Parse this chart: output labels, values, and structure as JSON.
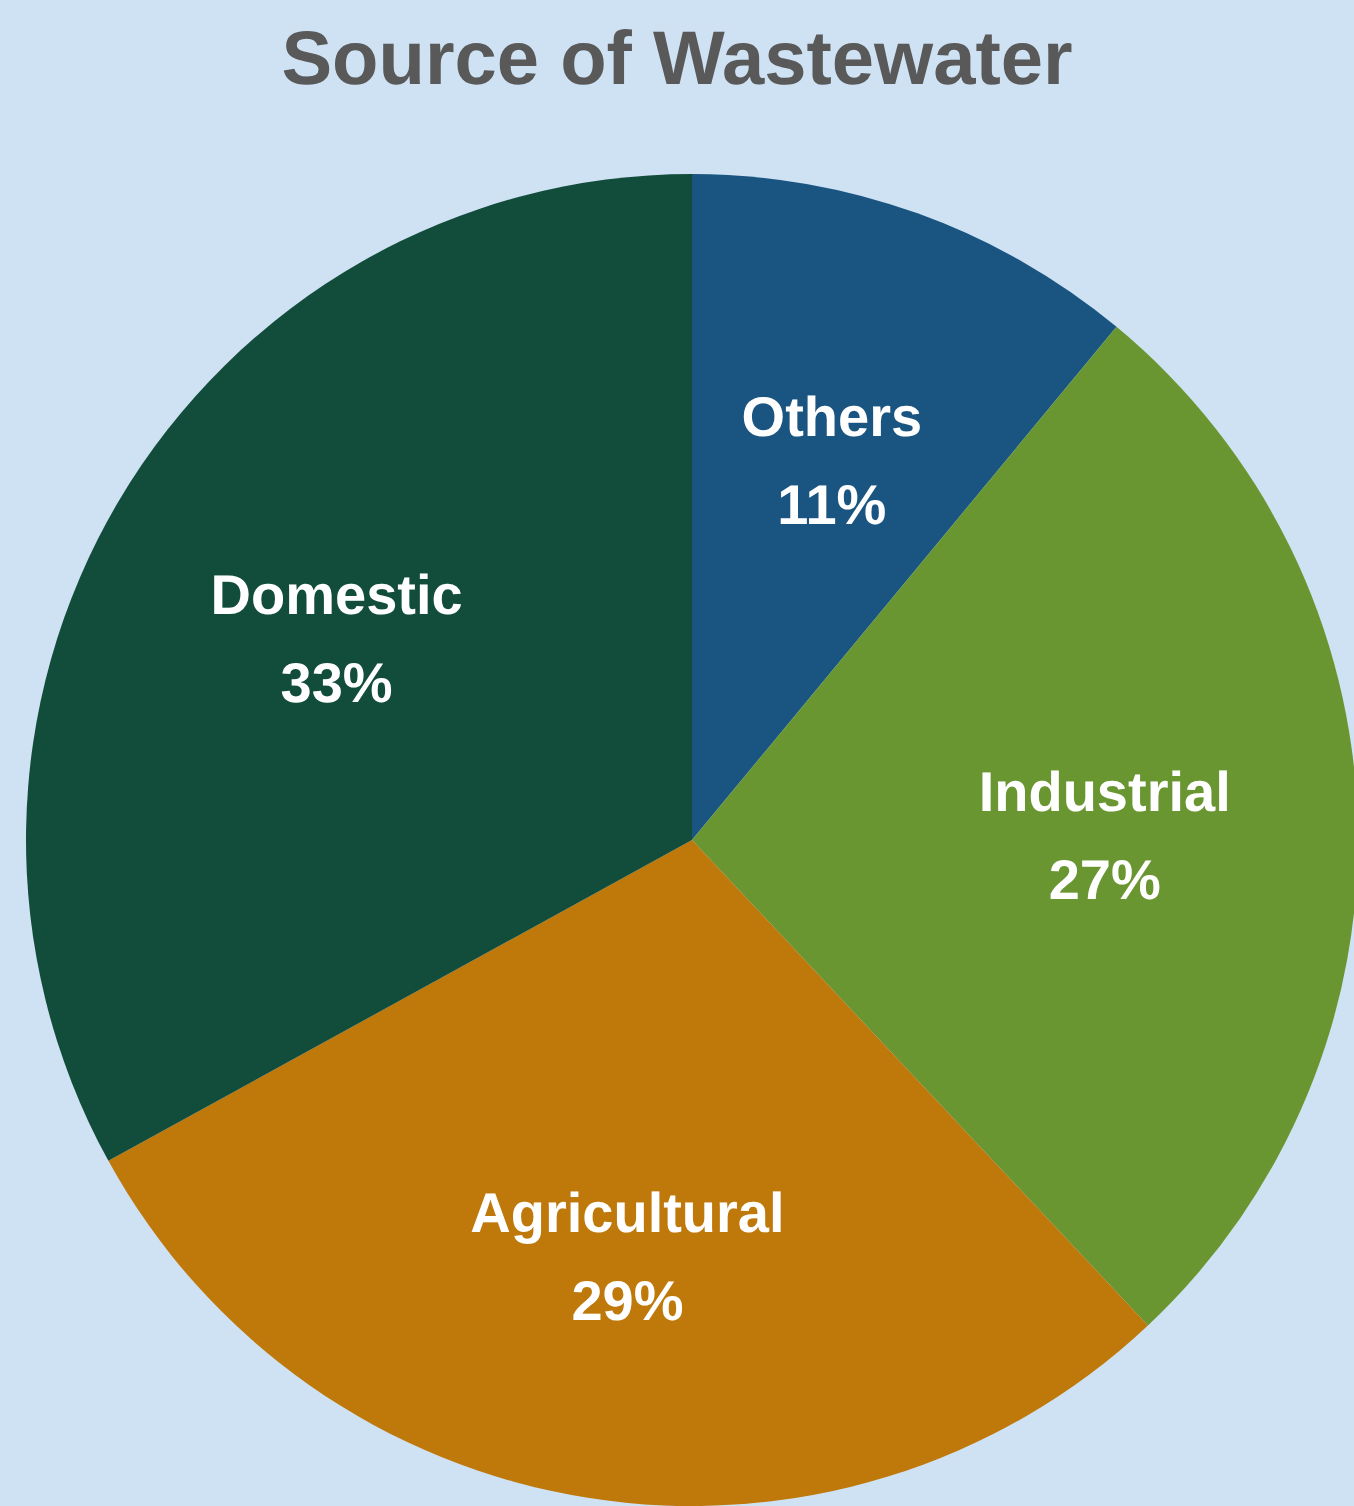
{
  "chart_data": {
    "type": "pie",
    "title": "Source of Wastewater",
    "categories": [
      "Others",
      "Industrial",
      "Agricultural",
      "Domestic"
    ],
    "values": [
      11,
      27,
      29,
      33
    ],
    "colors": [
      "#1a5582",
      "#6a9632",
      "#bf780a",
      "#124d3c"
    ],
    "value_labels": [
      "11%",
      "27%",
      "29%",
      "33%"
    ]
  }
}
